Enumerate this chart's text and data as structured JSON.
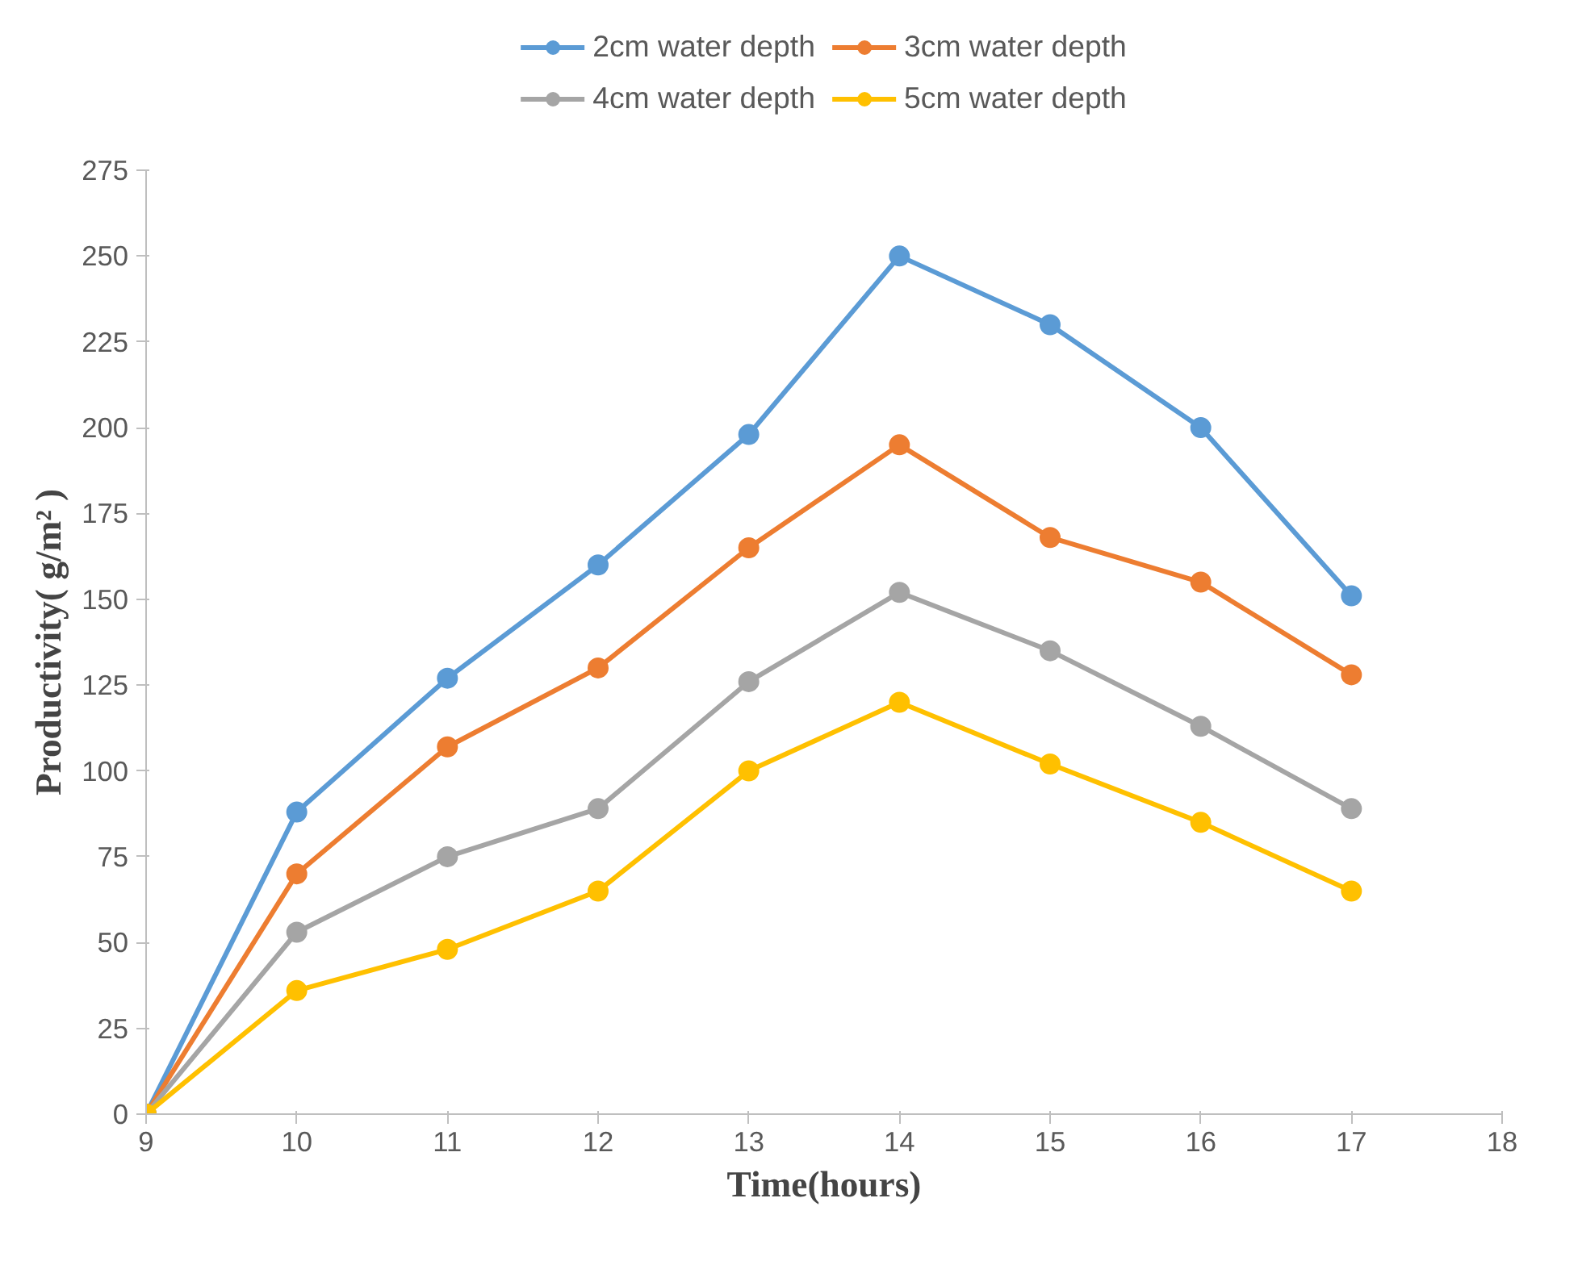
{
  "chart_data": {
    "type": "line",
    "xlabel": "Time(hours)",
    "ylabel": "Productivity( g/m² )",
    "x": [
      9,
      10,
      11,
      12,
      13,
      14,
      15,
      16,
      17
    ],
    "xlim": [
      9,
      18
    ],
    "xticks": [
      9,
      10,
      11,
      12,
      13,
      14,
      15,
      16,
      17,
      18
    ],
    "ylim": [
      0,
      275
    ],
    "yticks": [
      0,
      25,
      50,
      75,
      100,
      125,
      150,
      175,
      200,
      225,
      250,
      275
    ],
    "grid": false,
    "legend": "top",
    "marker": "circle",
    "line_style": "solid",
    "series": [
      {
        "name": "2cm water depth",
        "color": "#5b9bd5",
        "values": [
          0,
          88,
          127,
          160,
          198,
          250,
          230,
          200,
          151
        ]
      },
      {
        "name": "3cm water depth",
        "color": "#ed7d31",
        "values": [
          0,
          70,
          107,
          130,
          165,
          195,
          168,
          155,
          128
        ]
      },
      {
        "name": "4cm water depth",
        "color": "#a5a5a5",
        "values": [
          0,
          53,
          75,
          89,
          126,
          152,
          135,
          113,
          89
        ]
      },
      {
        "name": "5cm water depth",
        "color": "#ffc000",
        "values": [
          0,
          36,
          48,
          65,
          100,
          120,
          102,
          85,
          65
        ]
      }
    ]
  }
}
